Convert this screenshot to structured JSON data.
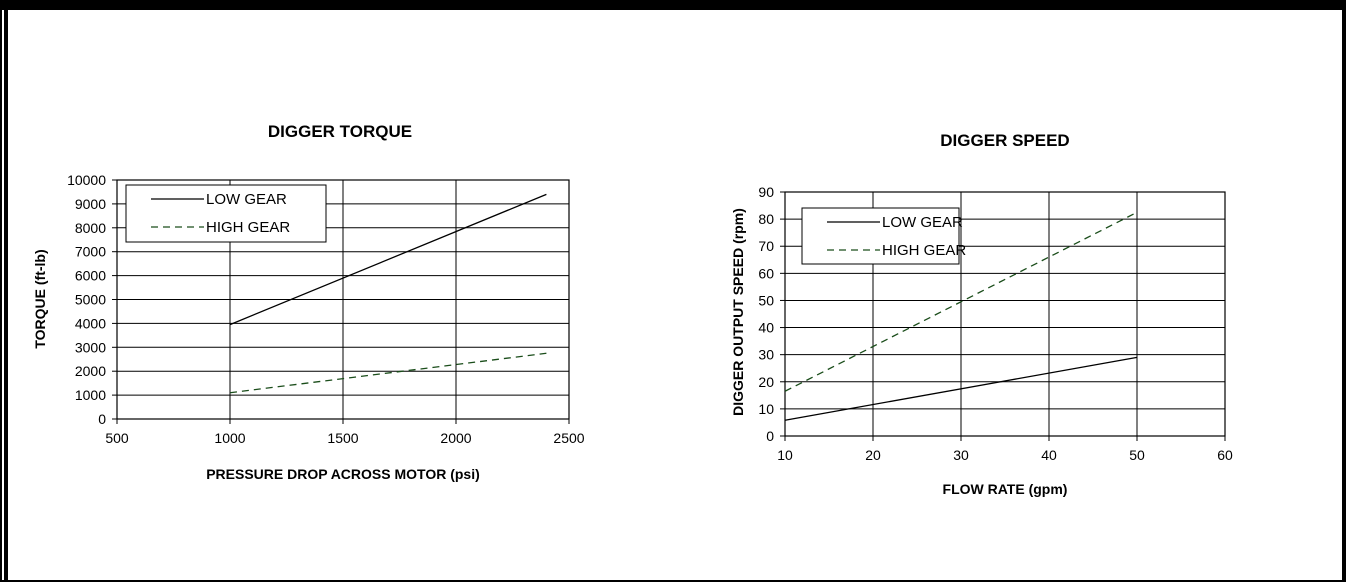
{
  "chart_data": [
    {
      "type": "line",
      "title": "DIGGER TORQUE",
      "xlabel": "PRESSURE DROP ACROSS MOTOR (psi)",
      "ylabel": "TORQUE (ft-lb)",
      "xlim": [
        500,
        2500
      ],
      "ylim": [
        0,
        10000
      ],
      "xticks": [
        "500",
        "1000",
        "1500",
        "2000",
        "2500"
      ],
      "yticks": [
        "0",
        "1000",
        "2000",
        "3000",
        "4000",
        "5000",
        "6000",
        "7000",
        "8000",
        "9000",
        "10000"
      ],
      "grid": "on",
      "legend_position": "top-left",
      "series": [
        {
          "name": "LOW GEAR",
          "color": "#000000",
          "dash": "solid",
          "x": [
            1000,
            2400
          ],
          "y": [
            3950,
            9400
          ]
        },
        {
          "name": "HIGH GEAR",
          "color": "#1a4d1a",
          "dash": "dashed",
          "x": [
            1000,
            2400
          ],
          "y": [
            1100,
            2750
          ]
        }
      ]
    },
    {
      "type": "line",
      "title": "DIGGER SPEED",
      "xlabel": "FLOW RATE (gpm)",
      "ylabel": "DIGGER OUTPUT SPEED (rpm)",
      "xlim": [
        10,
        60
      ],
      "ylim": [
        0,
        90
      ],
      "xticks": [
        "10",
        "20",
        "30",
        "40",
        "50",
        "60"
      ],
      "yticks": [
        "0",
        "10",
        "20",
        "30",
        "40",
        "50",
        "60",
        "70",
        "80",
        "90"
      ],
      "grid": "on",
      "legend_position": "top-left",
      "series": [
        {
          "name": "LOW GEAR",
          "color": "#000000",
          "dash": "solid",
          "x": [
            10,
            50
          ],
          "y": [
            5.8,
            29
          ]
        },
        {
          "name": "HIGH GEAR",
          "color": "#1a4d1a",
          "dash": "dashed",
          "x": [
            10,
            50
          ],
          "y": [
            16.5,
            82.5
          ]
        }
      ]
    }
  ]
}
